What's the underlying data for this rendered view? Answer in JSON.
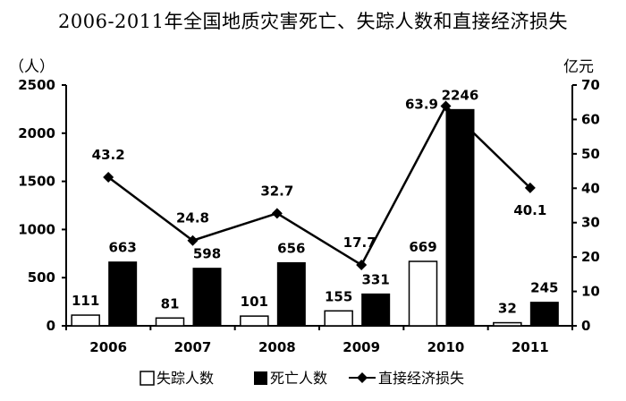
{
  "chart_data": {
    "type": "bar",
    "title": "2006-2011年全国地质灾害死亡、失踪人数和直接经济损失",
    "left_unit": "（人）",
    "right_unit": "亿元",
    "categories": [
      "2006",
      "2007",
      "2008",
      "2009",
      "2010",
      "2011"
    ],
    "series": [
      {
        "name": "失踪人数",
        "type": "bar",
        "axis": "left",
        "color": "#ffffff",
        "values": [
          111,
          81,
          101,
          155,
          669,
          32
        ]
      },
      {
        "name": "死亡人数",
        "type": "bar",
        "axis": "left",
        "color": "#000000",
        "values": [
          663,
          598,
          656,
          331,
          2246,
          245
        ]
      },
      {
        "name": "直接经济损失",
        "type": "line",
        "marker": "diamond",
        "axis": "right",
        "color": "#000000",
        "values": [
          43.2,
          24.8,
          32.7,
          17.7,
          63.9,
          40.1
        ]
      }
    ],
    "left_axis": {
      "ylim": [
        0,
        2500
      ],
      "ticks": [
        "0",
        "500",
        "1000",
        "1500",
        "2000",
        "2500"
      ]
    },
    "right_axis": {
      "ylim": [
        0,
        70
      ],
      "ticks": [
        "0",
        "10",
        "20",
        "30",
        "40",
        "50",
        "60",
        "70"
      ]
    },
    "grid": false,
    "legend_position": "bottom"
  }
}
